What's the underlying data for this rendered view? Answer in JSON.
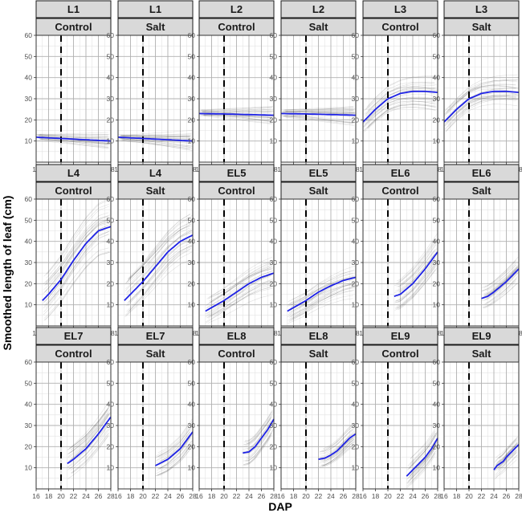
{
  "chart_data": {
    "type": "line",
    "xlabel": "DAP",
    "ylabel": "Smoothed length of leaf (cm)",
    "xlim": [
      16,
      28
    ],
    "ylim": [
      0,
      60
    ],
    "xticks": [
      16,
      18,
      20,
      22,
      24,
      26,
      28
    ],
    "yticks": [
      10,
      20,
      30,
      40,
      50,
      60
    ],
    "reference_line": {
      "x": 20,
      "style": "dashed"
    },
    "panels": [
      {
        "leaf": "L1",
        "treatment": "Control",
        "mean": {
          "x": [
            16,
            20,
            24,
            28
          ],
          "y": [
            11.8,
            11.2,
            10.6,
            10.0
          ]
        }
      },
      {
        "leaf": "L1",
        "treatment": "Salt",
        "mean": {
          "x": [
            16,
            20,
            24,
            28
          ],
          "y": [
            11.8,
            11.2,
            10.6,
            10.0
          ]
        }
      },
      {
        "leaf": "L2",
        "treatment": "Control",
        "mean": {
          "x": [
            16,
            20,
            24,
            28
          ],
          "y": [
            23.0,
            22.8,
            22.5,
            22.2
          ]
        }
      },
      {
        "leaf": "L2",
        "treatment": "Salt",
        "mean": {
          "x": [
            16,
            20,
            24,
            28
          ],
          "y": [
            23.0,
            22.8,
            22.5,
            22.2
          ]
        }
      },
      {
        "leaf": "L3",
        "treatment": "Control",
        "mean": {
          "x": [
            16,
            18,
            20,
            22,
            24,
            26,
            28
          ],
          "y": [
            19,
            25,
            30,
            32.5,
            33.5,
            33.5,
            33
          ]
        }
      },
      {
        "leaf": "L3",
        "treatment": "Salt",
        "mean": {
          "x": [
            16,
            18,
            20,
            22,
            24,
            26,
            28
          ],
          "y": [
            19,
            25,
            30,
            32.5,
            33.5,
            33.5,
            33
          ]
        }
      },
      {
        "leaf": "L4",
        "treatment": "Control",
        "mean": {
          "x": [
            17,
            18,
            20,
            22,
            24,
            26,
            28
          ],
          "y": [
            12,
            15,
            22,
            31,
            39,
            45,
            47
          ]
        }
      },
      {
        "leaf": "L4",
        "treatment": "Salt",
        "mean": {
          "x": [
            17,
            18,
            20,
            22,
            24,
            26,
            28
          ],
          "y": [
            12,
            15,
            21,
            28,
            35,
            40,
            43
          ]
        }
      },
      {
        "leaf": "EL5",
        "treatment": "Control",
        "mean": {
          "x": [
            17,
            20,
            22,
            24,
            26,
            28
          ],
          "y": [
            7,
            12,
            16,
            20,
            23,
            25
          ]
        }
      },
      {
        "leaf": "EL5",
        "treatment": "Salt",
        "mean": {
          "x": [
            17,
            20,
            22,
            24,
            26,
            28
          ],
          "y": [
            7,
            12,
            16,
            19,
            21.5,
            23
          ]
        }
      },
      {
        "leaf": "EL6",
        "treatment": "Control",
        "mean": {
          "x": [
            21,
            22,
            24,
            26,
            28
          ],
          "y": [
            14,
            15,
            20,
            27,
            35
          ]
        }
      },
      {
        "leaf": "EL6",
        "treatment": "Salt",
        "mean": {
          "x": [
            22,
            23,
            24,
            26,
            28
          ],
          "y": [
            13,
            14,
            16,
            21,
            27
          ]
        }
      },
      {
        "leaf": "EL7",
        "treatment": "Control",
        "mean": {
          "x": [
            21,
            22,
            24,
            26,
            28
          ],
          "y": [
            12,
            14,
            19,
            26,
            34
          ]
        }
      },
      {
        "leaf": "EL7",
        "treatment": "Salt",
        "mean": {
          "x": [
            22,
            24,
            26,
            28
          ],
          "y": [
            11,
            14,
            19,
            27
          ]
        }
      },
      {
        "leaf": "EL8",
        "treatment": "Control",
        "mean": {
          "x": [
            23,
            24,
            25,
            26,
            27,
            28
          ],
          "y": [
            17,
            17.5,
            20,
            24,
            28,
            33
          ]
        }
      },
      {
        "leaf": "EL8",
        "treatment": "Salt",
        "mean": {
          "x": [
            22,
            23,
            24,
            25,
            26,
            27,
            28
          ],
          "y": [
            14,
            14.5,
            16,
            18,
            21,
            24,
            26
          ]
        }
      },
      {
        "leaf": "EL9",
        "treatment": "Control",
        "mean": {
          "x": [
            23,
            24,
            25,
            26,
            27,
            28
          ],
          "y": [
            6,
            9,
            12,
            15,
            19,
            24
          ]
        }
      },
      {
        "leaf": "EL9",
        "treatment": "Salt",
        "mean": {
          "x": [
            24,
            24.5,
            25,
            25.5,
            26,
            27,
            28
          ],
          "y": [
            9,
            11,
            12,
            13,
            15,
            18,
            21
          ]
        }
      }
    ],
    "grid": true,
    "legend": "none"
  },
  "colors": {
    "mean_line": "#1e22e6",
    "individual_lines": "#000000",
    "strip_background": "#d9d9d9",
    "grid": "#b0b0b0"
  }
}
